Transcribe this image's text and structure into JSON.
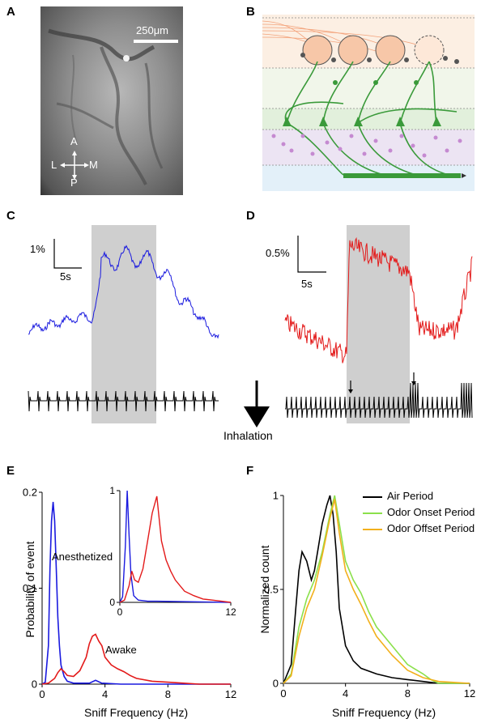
{
  "figure": {
    "panels": {
      "a": "A",
      "b": "B",
      "c": "C",
      "d": "D",
      "e": "E",
      "f": "F"
    },
    "panel_a": {
      "scale_bar": "250μm",
      "compass": {
        "anterior": "A",
        "posterior": "P",
        "lateral": "L",
        "medial": "M"
      }
    },
    "panel_c": {
      "scale_y": "1%",
      "scale_x": "5s",
      "trace_color": "#1a1adf"
    },
    "panel_d": {
      "scale_y": "0.5%",
      "scale_x": "5s",
      "trace_color": "#e31a1a"
    },
    "inhalation_label": "Inhalation",
    "panel_e": {
      "ylabel": "Probability of event",
      "xlabel": "Sniff Frequency (Hz)",
      "annotations": {
        "anesthetized": "Anesthetized",
        "awake": "Awake"
      }
    },
    "panel_f": {
      "ylabel": "Normalized count",
      "xlabel": "Sniff Frequency (Hz)",
      "legend": [
        "Air Period",
        "Odor Onset Period",
        "Odor Offset Period"
      ]
    }
  },
  "chart_data": [
    {
      "type": "line",
      "panel": "E",
      "xlabel": "Sniff Frequency (Hz)",
      "ylabel": "Probability of event",
      "xlim": [
        0,
        12
      ],
      "ylim": [
        0,
        0.2
      ],
      "xticks": [
        "0",
        "4",
        "8",
        "12"
      ],
      "yticks": [
        "0",
        "0.1",
        "0.2"
      ],
      "colors": {
        "anesthetized": "#1a1adf",
        "awake": "#e31a1a"
      },
      "series": [
        {
          "x": [
            0,
            0.2,
            0.4,
            0.5,
            0.6,
            0.7,
            0.8,
            0.9,
            1.0,
            1.1,
            1.2,
            1.4,
            1.6,
            2.0,
            3.0,
            3.4,
            3.8,
            5,
            12
          ],
          "values": [
            0,
            0.002,
            0.04,
            0.12,
            0.17,
            0.19,
            0.17,
            0.12,
            0.07,
            0.04,
            0.02,
            0.008,
            0.003,
            0.001,
            0.001,
            0.004,
            0.001,
            0,
            0
          ]
        },
        {
          "x": [
            0,
            0.4,
            0.8,
            1.0,
            1.2,
            1.4,
            1.6,
            2.0,
            2.4,
            2.8,
            3.0,
            3.2,
            3.4,
            3.6,
            3.8,
            4.0,
            4.4,
            4.8,
            5.2,
            5.6,
            6.0,
            7.0,
            8.0,
            9.0,
            10,
            12
          ],
          "values": [
            0,
            0.001,
            0.006,
            0.012,
            0.016,
            0.013,
            0.009,
            0.008,
            0.014,
            0.028,
            0.042,
            0.05,
            0.052,
            0.045,
            0.04,
            0.028,
            0.02,
            0.016,
            0.013,
            0.009,
            0.006,
            0.003,
            0.002,
            0.001,
            0,
            0
          ]
        }
      ]
    },
    {
      "type": "line",
      "panel": "E-inset",
      "xlim": [
        0,
        12
      ],
      "ylim": [
        0,
        1
      ],
      "xticks": [
        "0",
        "12"
      ],
      "yticks": [
        "0",
        "1"
      ],
      "series": [
        {
          "x": [
            0,
            0.3,
            0.6,
            0.8,
            1.0,
            1.2,
            1.5,
            2.0,
            3,
            4,
            12
          ],
          "values": [
            0,
            0.05,
            0.5,
            1.0,
            0.6,
            0.25,
            0.06,
            0.02,
            0.01,
            0.01,
            0
          ]
        },
        {
          "x": [
            0,
            0.5,
            1.0,
            1.3,
            1.6,
            2.0,
            2.5,
            3.0,
            3.5,
            4.0,
            4.5,
            5.0,
            5.5,
            6.0,
            7.0,
            8.0,
            9.0,
            10,
            11,
            12
          ],
          "values": [
            0,
            0.02,
            0.15,
            0.28,
            0.2,
            0.18,
            0.3,
            0.55,
            0.8,
            0.95,
            0.55,
            0.38,
            0.28,
            0.2,
            0.1,
            0.06,
            0.03,
            0.02,
            0.01,
            0
          ]
        }
      ]
    },
    {
      "type": "line",
      "panel": "F",
      "xlabel": "Sniff Frequency (Hz)",
      "ylabel": "Normalized count",
      "xlim": [
        0,
        12
      ],
      "ylim": [
        0,
        1
      ],
      "xticks": [
        "0",
        "4",
        "8",
        "12"
      ],
      "yticks": [
        "0",
        "0.5",
        "1"
      ],
      "colors": [
        "#000000",
        "#8be04b",
        "#f2b01c"
      ],
      "series": [
        {
          "name": "Air Period",
          "x": [
            0,
            0.5,
            0.8,
            1.0,
            1.2,
            1.5,
            1.8,
            2.0,
            2.2,
            2.5,
            2.8,
            3.0,
            3.2,
            3.4,
            3.6,
            4.0,
            4.5,
            5.0,
            6.0,
            7.0,
            8.0,
            9.0,
            10,
            12
          ],
          "values": [
            0,
            0.1,
            0.4,
            0.6,
            0.7,
            0.65,
            0.55,
            0.6,
            0.7,
            0.85,
            0.95,
            1.0,
            0.9,
            0.7,
            0.4,
            0.2,
            0.12,
            0.08,
            0.05,
            0.03,
            0.02,
            0.01,
            0,
            0
          ]
        },
        {
          "name": "Odor Onset Period",
          "x": [
            0,
            0.5,
            1.0,
            1.5,
            2.0,
            2.5,
            3.0,
            3.3,
            3.6,
            4.0,
            4.5,
            5.0,
            5.5,
            6.0,
            7.0,
            8.0,
            9.0,
            9.5,
            10,
            12
          ],
          "values": [
            0,
            0.05,
            0.3,
            0.45,
            0.55,
            0.7,
            0.9,
            1.0,
            0.85,
            0.65,
            0.55,
            0.48,
            0.38,
            0.3,
            0.2,
            0.1,
            0.05,
            0.02,
            0,
            0
          ]
        },
        {
          "name": "Odor Offset Period",
          "x": [
            0,
            0.5,
            1.0,
            1.5,
            2.0,
            2.5,
            3.0,
            3.3,
            3.6,
            4.0,
            4.5,
            5.0,
            5.5,
            6.0,
            7.0,
            8.0,
            9.0,
            10,
            12
          ],
          "values": [
            0,
            0.04,
            0.25,
            0.4,
            0.5,
            0.68,
            0.88,
            0.98,
            0.8,
            0.6,
            0.5,
            0.42,
            0.33,
            0.25,
            0.15,
            0.07,
            0.03,
            0.01,
            0
          ]
        }
      ]
    }
  ]
}
